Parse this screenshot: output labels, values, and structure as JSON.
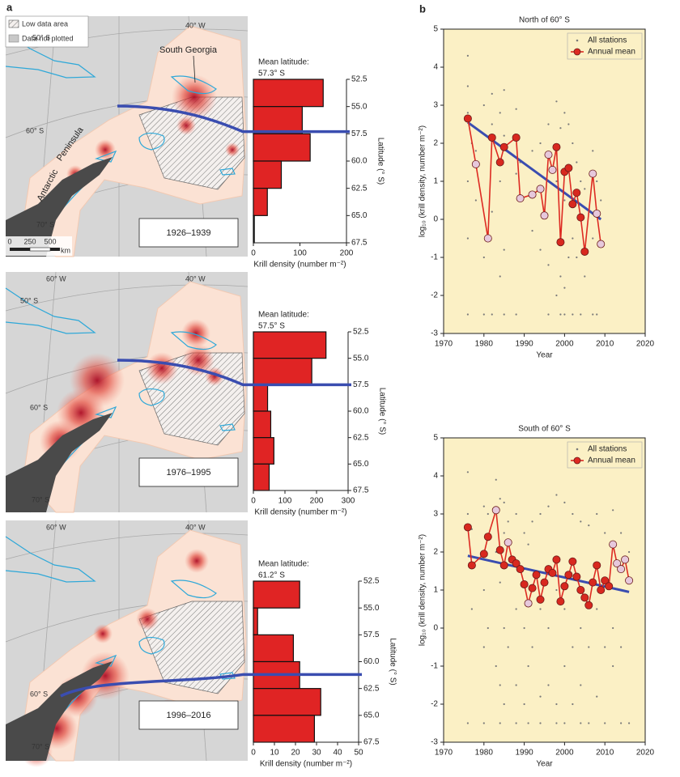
{
  "panel_labels": [
    "a",
    "b"
  ],
  "maps": [
    {
      "legend": [
        "Low data area",
        "Data not plotted"
      ],
      "graticule": [
        "50° S",
        "40° W",
        "60° S",
        "70° S"
      ],
      "places": [
        "South Georgia",
        "Peninsula",
        "Antarctic"
      ],
      "scale": [
        0,
        250,
        500,
        "km"
      ],
      "period": "1926–1939"
    },
    {
      "graticule": [
        "60° W",
        "40° W",
        "50° S",
        "60° S",
        "70° S"
      ],
      "period": "1976–1995"
    },
    {
      "graticule": [
        "60° W",
        "40° W",
        "60° S",
        "70° S"
      ],
      "period": "1996–2016"
    }
  ],
  "chart_data": [
    {
      "type": "histogram",
      "orientation": "horizontal",
      "mean_label": "Mean latitude:",
      "mean_latitude": {
        "value": 57.3,
        "label": "57.3° S"
      },
      "mean_color": "#3a4db0",
      "bins": [
        52.5,
        55,
        57.5,
        60,
        62.5,
        65,
        67.5
      ],
      "values": [
        150,
        105,
        122,
        60,
        30,
        2
      ],
      "color": "#e02424",
      "xlim": [
        0,
        200
      ],
      "xticks": [
        0,
        100,
        200
      ],
      "ylim": [
        52.5,
        67.5
      ],
      "yticks": [
        52.5,
        {
          "value": 55,
          "label": "55.0"
        },
        57.5,
        {
          "value": 60,
          "label": "60.0"
        },
        62.5,
        {
          "value": 65,
          "label": "65.0"
        },
        67.5
      ],
      "xlabel": "Krill density (number m⁻²)",
      "ylabel": "Latitude (° S)"
    },
    {
      "type": "histogram",
      "orientation": "horizontal",
      "mean_label": "Mean latitude:",
      "mean_latitude": {
        "value": 57.5,
        "label": "57.5° S"
      },
      "mean_color": "#3a4db0",
      "bins": [
        52.5,
        55,
        57.5,
        60,
        62.5,
        65,
        67.5
      ],
      "values": [
        230,
        185,
        45,
        55,
        65,
        50
      ],
      "color": "#e02424",
      "xlim": [
        0,
        300
      ],
      "xticks": [
        0,
        100,
        200,
        300
      ],
      "ylim": [
        52.5,
        67.5
      ],
      "yticks": [
        52.5,
        {
          "value": 55,
          "label": "55.0"
        },
        57.5,
        {
          "value": 60,
          "label": "60.0"
        },
        62.5,
        {
          "value": 65,
          "label": "65.0"
        },
        67.5
      ],
      "xlabel": "Krill density (number m⁻²)",
      "ylabel": "Latitude (° S)"
    },
    {
      "type": "histogram",
      "orientation": "horizontal",
      "mean_label": "Mean latitude:",
      "mean_latitude": {
        "value": 61.2,
        "label": "61.2° S"
      },
      "mean_color": "#3a4db0",
      "bins": [
        52.5,
        55,
        57.5,
        60,
        62.5,
        65,
        67.5
      ],
      "values": [
        22,
        2,
        19,
        22,
        32,
        29
      ],
      "color": "#e02424",
      "xlim": [
        0,
        50
      ],
      "xticks": [
        0,
        10,
        20,
        30,
        40,
        50
      ],
      "ylim": [
        52.5,
        67.5
      ],
      "yticks": [
        52.5,
        {
          "value": 55,
          "label": "55.0"
        },
        57.5,
        {
          "value": 60,
          "label": "60.0"
        },
        62.5,
        {
          "value": 65,
          "label": "65.0"
        },
        67.5
      ],
      "xlabel": "Krill density (number m⁻²)",
      "ylabel": "Latitude (° S)"
    },
    {
      "type": "scatter",
      "title": "North of 60° S",
      "xlabel": "Year",
      "ylabel": "log₁₀ (krill density, number m⁻²)",
      "background": "#fbf0c5",
      "legend": "upper right",
      "xlim": [
        1970,
        2020
      ],
      "xticks": [
        1970,
        1980,
        1990,
        2000,
        2010,
        2020
      ],
      "ylim": [
        -3,
        5
      ],
      "yticks": [
        -3,
        -2,
        -1,
        0,
        1,
        2,
        3,
        4,
        5
      ],
      "series": [
        {
          "name": "All stations",
          "color": "#7a7a7a",
          "x": [
            1976,
            1976,
            1976,
            1976,
            1976,
            1976,
            1977,
            1978,
            1978,
            1980,
            1980,
            1980,
            1982,
            1982,
            1982,
            1982,
            1984,
            1984,
            1984,
            1985,
            1985,
            1985,
            1985,
            1988,
            1988,
            1988,
            1989,
            1992,
            1992,
            1994,
            1994,
            1996,
            1996,
            1996,
            1998,
            1998,
            1998,
            1999,
            1999,
            1999,
            2000,
            2000,
            2000,
            2000,
            2001,
            2001,
            2002,
            2002,
            2002,
            2003,
            2003,
            2004,
            2004,
            2005,
            2005,
            2007,
            2007,
            2007,
            2008,
            2008,
            2009
          ],
          "values": [
            4.3,
            3.5,
            2.8,
            1.0,
            -0.5,
            -2.5,
            2.0,
            1.8,
            0.5,
            3.0,
            -1.0,
            -2.5,
            3.3,
            2.5,
            0.2,
            -2.5,
            2.8,
            1.0,
            -1.5,
            3.4,
            2.2,
            -0.8,
            -2.5,
            2.9,
            1.2,
            -2.5,
            1.5,
            1.8,
            -0.3,
            2.0,
            -0.8,
            2.5,
            -1.2,
            -2.5,
            3.1,
            1.0,
            -2.0,
            2.4,
            -1.5,
            -2.5,
            2.8,
            0.5,
            -1.8,
            -2.5,
            2.5,
            -1.0,
            2.0,
            -0.5,
            -2.5,
            1.5,
            -1.0,
            1.0,
            -2.5,
            0.8,
            -1.5,
            1.8,
            -0.5,
            -2.5,
            1.0,
            -2.5,
            0.5
          ]
        },
        {
          "name": "Annual mean",
          "color": "#dd2a22",
          "x": [
            1976,
            1978,
            1981,
            1982,
            1984,
            1985,
            1988,
            1989,
            1992,
            1994,
            1995,
            1996,
            1997,
            1998,
            1999,
            2000,
            2001,
            2002,
            2003,
            2004,
            2005,
            2007,
            2008,
            2009
          ],
          "values": [
            2.65,
            1.45,
            -0.5,
            2.15,
            1.5,
            1.9,
            2.15,
            0.55,
            0.65,
            0.8,
            0.1,
            1.7,
            1.3,
            1.9,
            -0.6,
            1.25,
            1.35,
            0.4,
            0.7,
            0.05,
            -0.85,
            1.2,
            0.15,
            -0.65
          ],
          "marker_colors": [
            "#d8281f",
            "#e6c8dc",
            "#e6c8dc",
            "#d8281f",
            "#d8281f",
            "#d8281f",
            "#d8281f",
            "#e6c8dc",
            "#e6c8dc",
            "#e6c8dc",
            "#e6c8dc",
            "#e6c8dc",
            "#e6c8dc",
            "#d8281f",
            "#d8281f",
            "#d8281f",
            "#d8281f",
            "#d8281f",
            "#d8281f",
            "#d8281f",
            "#d8281f",
            "#e6c8dc",
            "#e6c8dc",
            "#e6c8dc"
          ]
        }
      ],
      "trend": {
        "color": "#3a4db0",
        "x": [
          1976,
          2009
        ],
        "values": [
          2.55,
          0.0
        ]
      }
    },
    {
      "type": "scatter",
      "title": "South of 60° S",
      "xlabel": "Year",
      "ylabel": "log₁₀ (krill density, number m⁻²)",
      "background": "#fbf0c5",
      "legend": "upper right",
      "xlim": [
        1970,
        2020
      ],
      "xticks": [
        1970,
        1980,
        1990,
        2000,
        2010,
        2020
      ],
      "ylim": [
        -3,
        5
      ],
      "yticks": [
        -3,
        -2,
        -1,
        0,
        1,
        2,
        3,
        4,
        5
      ],
      "series": [
        {
          "name": "All stations",
          "color": "#7a7a7a",
          "x": [
            1976,
            1976,
            1976,
            1977,
            1977,
            1980,
            1980,
            1980,
            1980,
            1981,
            1981,
            1983,
            1983,
            1983,
            1984,
            1984,
            1984,
            1984,
            1985,
            1985,
            1985,
            1985,
            1986,
            1986,
            1988,
            1988,
            1988,
            1988,
            1990,
            1990,
            1990,
            1991,
            1991,
            1991,
            1992,
            1992,
            1994,
            1994,
            1994,
            1994,
            1996,
            1996,
            1996,
            1998,
            1998,
            1998,
            1998,
            2000,
            2000,
            2000,
            2000,
            2002,
            2002,
            2002,
            2004,
            2004,
            2004,
            2004,
            2006,
            2006,
            2006,
            2008,
            2008,
            2008,
            2010,
            2010,
            2010,
            2012,
            2012,
            2012,
            2014,
            2014,
            2014,
            2016,
            2016
          ],
          "values": [
            4.1,
            3.0,
            -2.5,
            2.6,
            0.5,
            3.2,
            1.0,
            -0.5,
            -2.5,
            3.0,
            0.0,
            3.9,
            2.0,
            -1.0,
            3.4,
            1.2,
            -1.5,
            -2.5,
            3.3,
            2.5,
            0.0,
            -2.0,
            2.8,
            -0.5,
            3.0,
            0.5,
            -1.5,
            -2.5,
            2.5,
            0.0,
            -2.0,
            2.2,
            -1.0,
            -2.5,
            2.8,
            -0.5,
            3.0,
            0.5,
            -1.8,
            -2.5,
            3.2,
            0.0,
            -1.5,
            3.5,
            1.0,
            -2.0,
            -2.5,
            3.3,
            0.5,
            -1.0,
            -2.5,
            3.0,
            -0.5,
            -2.0,
            2.8,
            0.0,
            -1.5,
            -2.5,
            2.7,
            -0.5,
            -2.5,
            3.0,
            0.5,
            -1.8,
            2.5,
            -0.5,
            -2.5,
            3.1,
            0.0,
            -1.0,
            2.5,
            -0.5,
            -2.5,
            2.0,
            -2.5
          ]
        },
        {
          "name": "Annual mean",
          "color": "#dd2a22",
          "x": [
            1976,
            1977,
            1980,
            1981,
            1983,
            1984,
            1985,
            1986,
            1987,
            1988,
            1989,
            1990,
            1991,
            1992,
            1993,
            1994,
            1995,
            1996,
            1997,
            1998,
            1999,
            2000,
            2001,
            2002,
            2003,
            2004,
            2005,
            2006,
            2007,
            2008,
            2009,
            2010,
            2011,
            2012,
            2013,
            2014,
            2015,
            2016
          ],
          "values": [
            2.65,
            1.65,
            1.95,
            2.4,
            3.1,
            2.05,
            1.65,
            2.25,
            1.8,
            1.7,
            1.55,
            1.15,
            0.65,
            1.05,
            1.4,
            0.75,
            1.2,
            1.55,
            1.45,
            1.8,
            0.7,
            1.1,
            1.4,
            1.75,
            1.35,
            1.0,
            0.8,
            0.6,
            1.2,
            1.65,
            1.0,
            1.25,
            1.1,
            2.2,
            1.7,
            1.55,
            1.8,
            1.25
          ],
          "marker_colors": [
            "#d8281f",
            "#d8281f",
            "#d8281f",
            "#d8281f",
            "#e6c8dc",
            "#d8281f",
            "#d8281f",
            "#e6c8dc",
            "#d8281f",
            "#d8281f",
            "#d8281f",
            "#d8281f",
            "#e6c8dc",
            "#d8281f",
            "#d8281f",
            "#d8281f",
            "#d8281f",
            "#d8281f",
            "#d8281f",
            "#d8281f",
            "#d8281f",
            "#d8281f",
            "#d8281f",
            "#d8281f",
            "#d8281f",
            "#d8281f",
            "#d8281f",
            "#d8281f",
            "#d8281f",
            "#d8281f",
            "#d8281f",
            "#d8281f",
            "#d8281f",
            "#e6c8dc",
            "#e6c8dc",
            "#e6c8dc",
            "#e6c8dc",
            "#e6c8dc"
          ]
        }
      ],
      "trend": {
        "color": "#3a4db0",
        "x": [
          1976,
          2016
        ],
        "values": [
          1.9,
          0.95
        ]
      }
    }
  ]
}
